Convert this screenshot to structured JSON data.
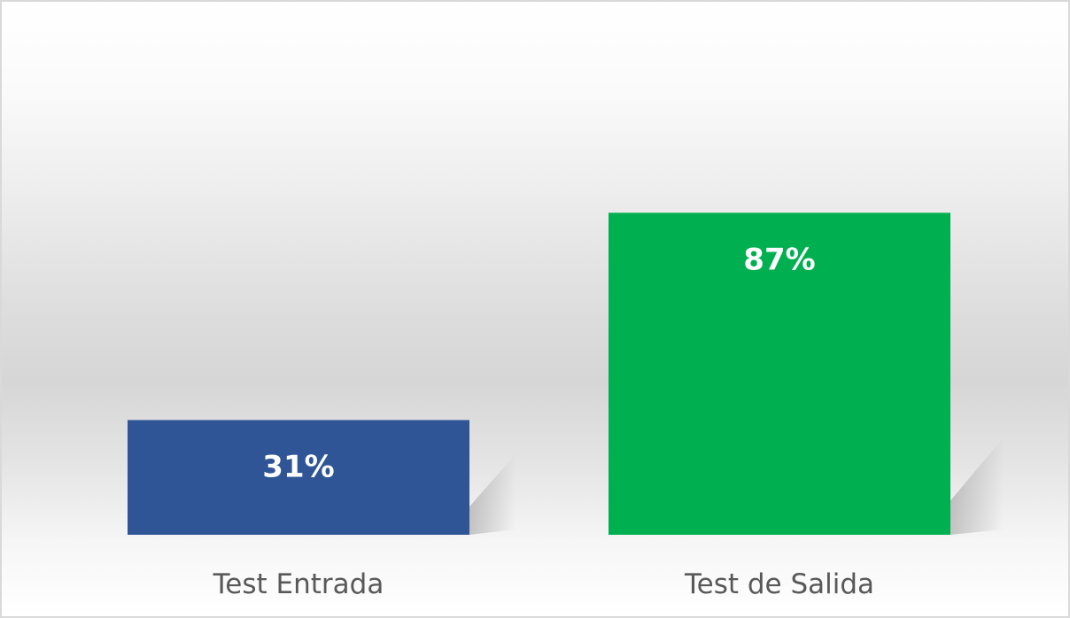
{
  "chart_data": {
    "type": "bar",
    "categories": [
      "Test Entrada",
      "Test de Salida"
    ],
    "values": [
      31,
      87
    ],
    "value_labels": [
      "31%",
      "87%"
    ],
    "ylim": [
      0,
      100
    ],
    "colors": [
      "#2F5597",
      "#00B050"
    ],
    "value_label_color": "#FFFFFF",
    "axis_label_color": "#595959",
    "grid": false,
    "legend": "none"
  }
}
